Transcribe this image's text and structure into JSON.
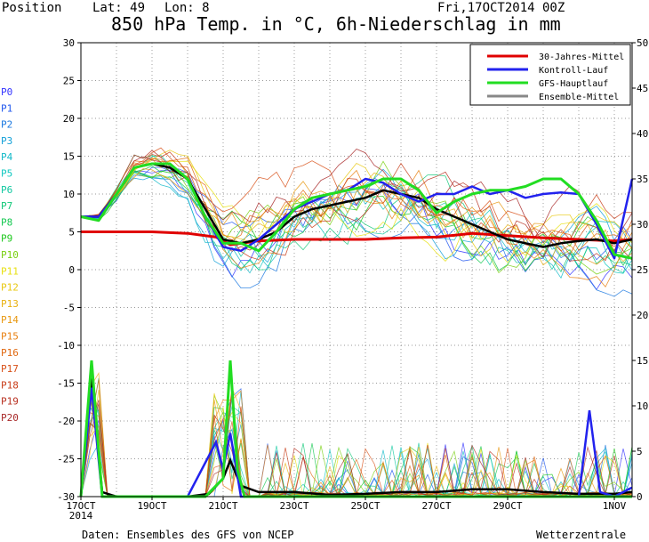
{
  "header": {
    "position_label": "Position",
    "lat_label": "Lat: 49",
    "lon_label": "Lon: 8",
    "run_label": "Fri,17OCT2014 00Z"
  },
  "footer": {
    "source": "Daten: Ensembles des GFS von NCEP",
    "brand": "Wetterzentrale"
  },
  "colors": {
    "mittel30": "#e00000",
    "kontroll": "#2222ee",
    "gfs": "#22dd22",
    "ensemble": "#000000",
    "legend_ensemble": "#888888"
  },
  "members": [
    {
      "label": "P0",
      "color": "#3333ff"
    },
    {
      "label": "P1",
      "color": "#1e55ee"
    },
    {
      "label": "P2",
      "color": "#1a78e0"
    },
    {
      "label": "P3",
      "color": "#12a0d8"
    },
    {
      "label": "P4",
      "color": "#10b8c8"
    },
    {
      "label": "P5",
      "color": "#10c8c0"
    },
    {
      "label": "P6",
      "color": "#10c8a0"
    },
    {
      "label": "P7",
      "color": "#10c878"
    },
    {
      "label": "P8",
      "color": "#14c850"
    },
    {
      "label": "P9",
      "color": "#1ec81e"
    },
    {
      "label": "P10",
      "color": "#78d010"
    },
    {
      "label": "P11",
      "color": "#e8e010"
    },
    {
      "label": "P12",
      "color": "#e8c810"
    },
    {
      "label": "P13",
      "color": "#e8b010"
    },
    {
      "label": "P14",
      "color": "#e89810"
    },
    {
      "label": "P15",
      "color": "#e88010"
    },
    {
      "label": "P16",
      "color": "#e06810"
    },
    {
      "label": "P17",
      "color": "#d85018"
    },
    {
      "label": "P18",
      "color": "#c83c18"
    },
    {
      "label": "P19",
      "color": "#b83020"
    },
    {
      "label": "P20",
      "color": "#a82828"
    }
  ],
  "chart_data": {
    "type": "line",
    "title": "850 hPa Temp. in °C, 6h-Niederschlag in mm",
    "xlabel": "",
    "ylabel": "",
    "x_range_days": [
      17.0,
      1.5
    ],
    "x_ticks": [
      {
        "label": "17OCT",
        "sub": "2014",
        "day": 17
      },
      {
        "label": "19OCT",
        "day": 19
      },
      {
        "label": "21OCT",
        "day": 21
      },
      {
        "label": "23OCT",
        "day": 23
      },
      {
        "label": "25OCT",
        "day": 25
      },
      {
        "label": "27OCT",
        "day": 27
      },
      {
        "label": "29OCT",
        "day": 29
      },
      {
        "label": "1NOV",
        "day": 32
      }
    ],
    "y_left": {
      "min": -30,
      "max": 30,
      "step": 5,
      "unit": "°C"
    },
    "y_right": {
      "min": 0,
      "max": 50,
      "step": 5,
      "unit": "mm"
    },
    "grid": true,
    "legend_position": "top-right",
    "legend": [
      {
        "label": "30-Jahres-Mittel",
        "color": "#e00000"
      },
      {
        "label": "Kontroll-Lauf",
        "color": "#2222ee"
      },
      {
        "label": "GFS-Hauptlauf",
        "color": "#22dd22"
      },
      {
        "label": "Ensemble-Mittel",
        "color": "#888888"
      }
    ],
    "temperature_series": [
      {
        "name": "30-Jahres-Mittel",
        "color": "#e00000",
        "width": 3,
        "x": [
          17,
          18,
          19,
          20,
          20.8,
          21.2,
          22,
          23,
          24,
          25,
          26,
          27,
          28,
          29,
          30,
          31,
          32,
          32.5
        ],
        "y": [
          5,
          5,
          5,
          4.8,
          4.3,
          3.3,
          3.8,
          4,
          4,
          4,
          4.2,
          4.3,
          4.8,
          4.5,
          4.2,
          4,
          3.8,
          4
        ]
      },
      {
        "name": "Ensemble-Mittel",
        "color": "#000000",
        "width": 2.5,
        "x": [
          17,
          17.5,
          18,
          18.5,
          19,
          19.5,
          20,
          20.5,
          21,
          21.5,
          22,
          22.5,
          23,
          23.5,
          24,
          24.5,
          25,
          25.5,
          26,
          26.5,
          27,
          27.5,
          28,
          28.5,
          29,
          29.5,
          30,
          30.5,
          31,
          31.5,
          32,
          32.5
        ],
        "y": [
          7,
          7,
          10,
          13.5,
          14,
          13.5,
          12,
          8,
          4,
          3.5,
          4,
          5,
          7,
          8,
          8.5,
          9,
          9.5,
          10.5,
          10,
          9.5,
          8,
          7,
          6,
          5,
          4,
          3.5,
          3,
          3.5,
          3.8,
          4,
          3.5,
          4
        ]
      },
      {
        "name": "Kontroll-Lauf",
        "color": "#2222ee",
        "width": 2.5,
        "x": [
          17,
          17.5,
          18,
          18.5,
          19,
          19.5,
          20,
          20.5,
          21,
          21.5,
          22,
          22.5,
          23,
          23.5,
          24,
          24.5,
          25,
          25.5,
          26,
          26.5,
          27,
          27.5,
          28,
          28.5,
          29,
          29.5,
          30,
          30.5,
          31,
          31.5,
          32,
          32.5
        ],
        "y": [
          7,
          7,
          10,
          13.5,
          14,
          14,
          12,
          7,
          3,
          2.5,
          4,
          6,
          8,
          9,
          10,
          10.5,
          12,
          11.5,
          10,
          9,
          10,
          10,
          11,
          10,
          10.5,
          9.5,
          10,
          10.2,
          10,
          6,
          1.5,
          12
        ]
      },
      {
        "name": "GFS-Hauptlauf",
        "color": "#22dd22",
        "width": 3,
        "x": [
          17,
          17.5,
          18,
          18.5,
          19,
          19.5,
          20,
          20.5,
          21,
          21.5,
          22,
          22.5,
          23,
          23.5,
          24,
          24.5,
          25,
          25.5,
          26,
          26.5,
          27,
          27.5,
          28,
          28.5,
          29,
          29.5,
          30,
          30.5,
          31,
          31.5,
          32,
          32.5
        ],
        "y": [
          7,
          6.5,
          10,
          13.5,
          14,
          14,
          12,
          7,
          3.5,
          3.5,
          2.5,
          5,
          8,
          9.5,
          10,
          10.5,
          11,
          12,
          12,
          10.5,
          7.5,
          9,
          10,
          10.5,
          10.5,
          11,
          12,
          12,
          10,
          6.5,
          2,
          1.5
        ]
      }
    ],
    "precipitation_series": [
      {
        "name": "Ensemble-Mittel",
        "color": "#000000",
        "width": 2.5,
        "x": [
          17,
          17.3,
          17.6,
          18,
          19,
          20,
          20.6,
          21,
          21.2,
          21.5,
          22,
          23,
          24,
          25,
          26,
          27,
          28,
          29,
          30,
          31,
          32,
          32.5
        ],
        "y": [
          0,
          13,
          0.5,
          0,
          0,
          0,
          0.3,
          2,
          4,
          1.2,
          0.5,
          0.5,
          0.2,
          0.3,
          0.5,
          0.5,
          0.8,
          0.8,
          0.5,
          0.3,
          0.3,
          0.5
        ]
      },
      {
        "name": "Kontroll-Lauf",
        "color": "#2222ee",
        "width": 2.5,
        "x": [
          17,
          17.3,
          17.6,
          18,
          20,
          20.8,
          21,
          21.2,
          21.5,
          22,
          29,
          31,
          31.3,
          31.6,
          32,
          32.5
        ],
        "y": [
          0,
          12,
          0,
          0,
          0,
          6,
          3,
          7,
          0,
          0,
          0,
          0,
          9.5,
          0.5,
          0,
          1
        ]
      },
      {
        "name": "GFS-Hauptlauf",
        "color": "#22dd22",
        "width": 3,
        "x": [
          17,
          17.3,
          17.6,
          18,
          20.5,
          21,
          21.2,
          21.4,
          21.6,
          22,
          32.5
        ],
        "y": [
          0,
          15,
          0,
          0,
          0,
          2,
          15,
          3,
          0,
          0,
          0
        ]
      }
    ]
  }
}
